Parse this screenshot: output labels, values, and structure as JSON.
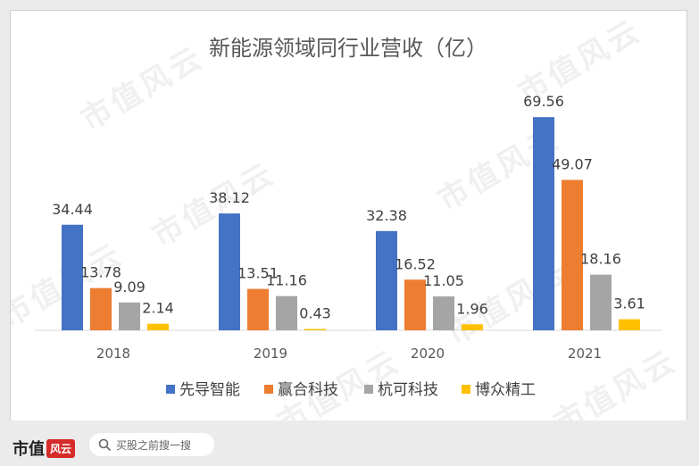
{
  "chart_data": {
    "type": "bar",
    "title": "新能源领域同行业营收（亿）",
    "categories": [
      "2018",
      "2019",
      "2020",
      "2021"
    ],
    "series": [
      {
        "name": "先导智能",
        "values": [
          34.44,
          38.12,
          32.38,
          69.56
        ],
        "color": "#4472c4"
      },
      {
        "name": "赢合科技",
        "values": [
          13.78,
          13.51,
          16.52,
          49.07
        ],
        "color": "#ed7d31"
      },
      {
        "name": "杭可科技",
        "values": [
          9.09,
          11.16,
          11.05,
          18.16
        ],
        "color": "#a5a5a5"
      },
      {
        "name": "博众精工",
        "values": [
          2.14,
          0.43,
          1.96,
          3.61
        ],
        "color": "#ffc000"
      }
    ],
    "value_labels": [
      [
        "34.44",
        "38.12",
        "32.38",
        "69.56"
      ],
      [
        "13.78",
        "13.51",
        "16.52",
        "49.07"
      ],
      [
        "9.09",
        "11.16",
        "11.05",
        "18.16"
      ],
      [
        "2.14",
        "0.43",
        "1.96",
        "3.61"
      ]
    ],
    "ylim": [
      0,
      80
    ],
    "grid": false,
    "legend_position": "bottom"
  },
  "watermark": "市值风云",
  "footer": {
    "brand": "市值",
    "brand_mark": "风云",
    "search_placeholder": "买股之前搜一搜",
    "search_icon": "search-icon"
  }
}
